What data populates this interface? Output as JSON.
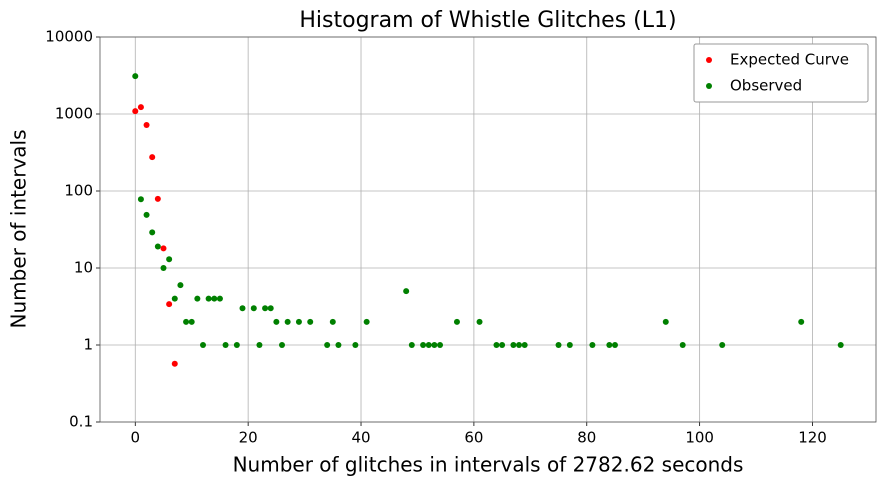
{
  "chart_data": {
    "type": "scatter",
    "title": "Histogram of Whistle Glitches (L1)",
    "x_label": "Number of glitches in intervals of 2782.62 seconds",
    "y_label": "Number of intervals",
    "yscale": "log",
    "grid": true,
    "legend": "upper right",
    "xlim": [
      -6.25,
      131.25
    ],
    "ylim": [
      0.1,
      10000
    ],
    "xticks": [
      0,
      20,
      40,
      60,
      80,
      100,
      120
    ],
    "yticks": [
      0.1,
      1,
      10,
      100,
      1000,
      10000
    ],
    "series": [
      {
        "name": "Expected Curve",
        "color": "#ff0000",
        "x": [
          0,
          1,
          2,
          3,
          4,
          5,
          6,
          7
        ],
        "values": [
          1090,
          1230,
          720,
          275,
          79,
          18,
          3.4,
          0.57
        ]
      },
      {
        "name": "Observed",
        "color": "#008000",
        "x": [
          0,
          1,
          2,
          3,
          4,
          5,
          6,
          7,
          8,
          9,
          10,
          11,
          12,
          13,
          14,
          15,
          16,
          18,
          19,
          21,
          22,
          23,
          24,
          25,
          26,
          27,
          29,
          31,
          34,
          35,
          36,
          39,
          41,
          48,
          49,
          51,
          52,
          53,
          54,
          57,
          61,
          64,
          65,
          67,
          68,
          69,
          75,
          77,
          81,
          84,
          85,
          94,
          97,
          104,
          118,
          125
        ],
        "values": [
          3100,
          78,
          49,
          29,
          19,
          10,
          13,
          4,
          6,
          2,
          2,
          4,
          1,
          4,
          4,
          4,
          1,
          1,
          3,
          3,
          1,
          3,
          3,
          2,
          1,
          2,
          2,
          2,
          1,
          2,
          1,
          1,
          2,
          5,
          1,
          1,
          1,
          1,
          1,
          2,
          2,
          1,
          1,
          1,
          1,
          1,
          1,
          1,
          1,
          1,
          1,
          2,
          1,
          1,
          2,
          1
        ]
      }
    ]
  }
}
